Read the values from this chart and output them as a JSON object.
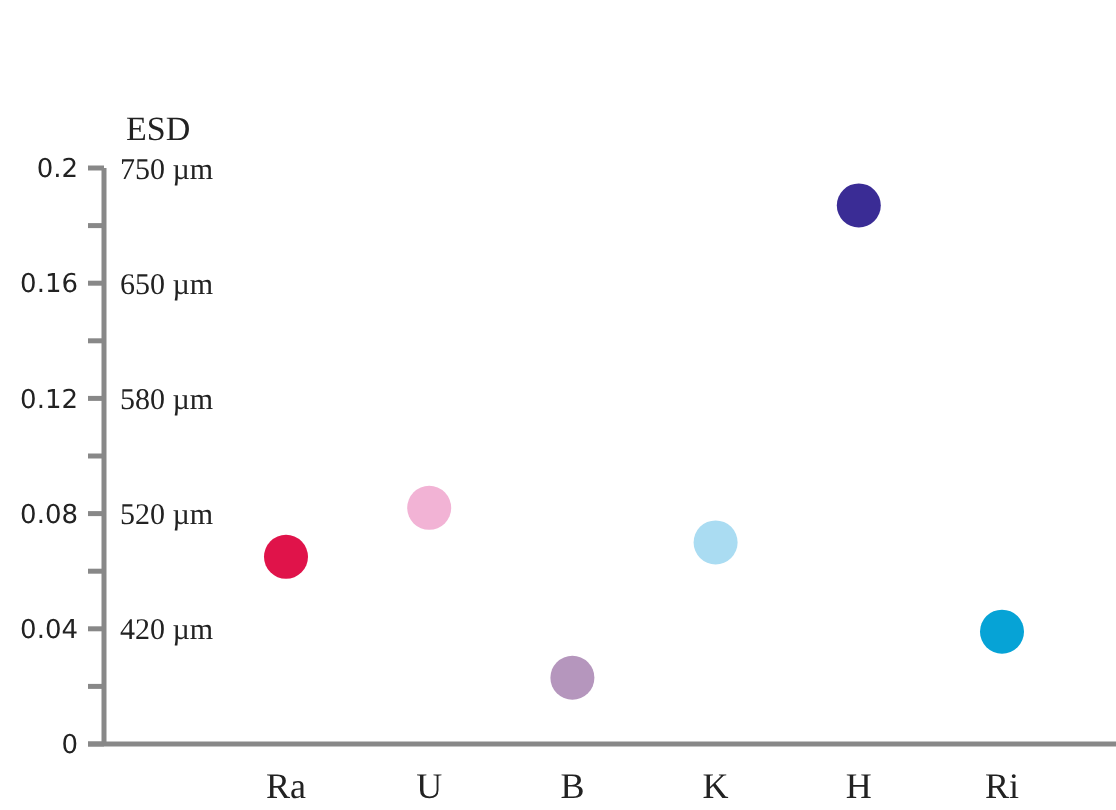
{
  "chart_data": {
    "type": "scatter",
    "title": "ESD",
    "categories": [
      "Ra",
      "U",
      "B",
      "K",
      "H",
      "Ri"
    ],
    "values": [
      0.065,
      0.082,
      0.023,
      0.07,
      0.187,
      0.039
    ],
    "colors": [
      "#e0134a",
      "#f2b3d5",
      "#b596bd",
      "#aadcf2",
      "#3a2c95",
      "#06a3d6"
    ],
    "ylim": [
      0,
      0.2
    ],
    "yticks": [
      0,
      {
        "value": 0.02,
        "label": null
      },
      0.04,
      {
        "value": 0.06,
        "label": null
      },
      0.08,
      {
        "value": 0.1,
        "label": null
      },
      0.12,
      {
        "value": 0.14,
        "label": null
      },
      0.16,
      {
        "value": 0.18,
        "label": null
      },
      0.2
    ],
    "annotations": [
      "420 µm",
      "520 µm",
      "580 µm",
      "650 µm",
      "750 µm"
    ],
    "marker": "circle",
    "grid": false
  }
}
